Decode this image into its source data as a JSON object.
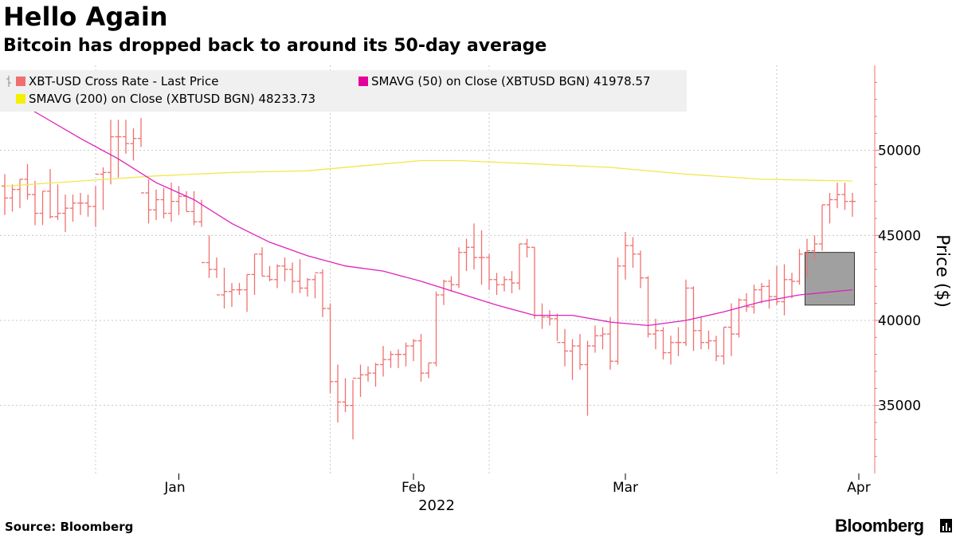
{
  "header": {
    "title": "Hello Again",
    "subtitle": "Bitcoin has dropped back to around its 50-day average"
  },
  "footer": {
    "source": "Source: Bloomberg",
    "brand": "Bloomberg"
  },
  "legend": {
    "items": [
      {
        "label": "XBT-USD Cross Rate - Last Price",
        "color": "#f07070"
      },
      {
        "label": "SMAVG (50)  on Close (XBTUSD BGN) 41978.57",
        "color": "#e6009a"
      },
      {
        "label": "SMAVG (200)  on Close (XBTUSD BGN) 48233.73",
        "color": "#f5f000"
      }
    ]
  },
  "colors": {
    "price": "#f07070",
    "sma50": "#dd22bb",
    "sma200": "#f0e84a",
    "grid": "#c8c8c8",
    "axis": "#f07070",
    "highlight_fill": "#a0a0a0"
  },
  "chart_data": {
    "type": "line",
    "title": "Hello Again",
    "subtitle": "Bitcoin has dropped back to around its 50-day average",
    "xlabel": "2022",
    "ylabel": "Price ($)",
    "ylim": [
      31000,
      55000
    ],
    "y_ticks": [
      35000,
      40000,
      45000,
      50000
    ],
    "y_tick_labels": [
      "35000",
      "40000",
      "45000",
      "50000"
    ],
    "x_tick_labels": [
      "Jan",
      "Feb",
      "Mar",
      "Apr"
    ],
    "x_range": [
      "2021-12-09",
      "2022-03-31"
    ],
    "x_ticks": [
      "2022-01-01",
      "2022-02-01",
      "2022-03-01",
      "2022-04-01"
    ],
    "x_grid": [
      "2021-12-21",
      "2022-01-21",
      "2022-02-11",
      "2022-03-21"
    ],
    "grid": true,
    "legend_position": "top-left",
    "highlight": {
      "from": "2022-03-26",
      "to": "2022-03-30",
      "ylow": 40900,
      "yhigh": 44000
    },
    "series": [
      {
        "name": "XBT-USD Cross Rate - Last Price",
        "style": "ohlc",
        "x": [
          "2021-12-09",
          "2021-12-10",
          "2021-12-11",
          "2021-12-12",
          "2021-12-13",
          "2021-12-14",
          "2021-12-15",
          "2021-12-16",
          "2021-12-17",
          "2021-12-18",
          "2021-12-19",
          "2021-12-20",
          "2021-12-21",
          "2021-12-22",
          "2021-12-23",
          "2021-12-24",
          "2021-12-25",
          "2021-12-26",
          "2021-12-27",
          "2021-12-28",
          "2021-12-29",
          "2021-12-30",
          "2021-12-31",
          "2022-01-01",
          "2022-01-02",
          "2022-01-03",
          "2022-01-04",
          "2022-01-05",
          "2022-01-06",
          "2022-01-07",
          "2022-01-08",
          "2022-01-09",
          "2022-01-10",
          "2022-01-11",
          "2022-01-12",
          "2022-01-13",
          "2022-01-14",
          "2022-01-15",
          "2022-01-16",
          "2022-01-17",
          "2022-01-18",
          "2022-01-19",
          "2022-01-20",
          "2022-01-21",
          "2022-01-22",
          "2022-01-23",
          "2022-01-24",
          "2022-01-25",
          "2022-01-26",
          "2022-01-27",
          "2022-01-28",
          "2022-01-29",
          "2022-01-30",
          "2022-01-31",
          "2022-02-01",
          "2022-02-02",
          "2022-02-03",
          "2022-02-04",
          "2022-02-05",
          "2022-02-06",
          "2022-02-07",
          "2022-02-08",
          "2022-02-09",
          "2022-02-10",
          "2022-02-11",
          "2022-02-12",
          "2022-02-13",
          "2022-02-14",
          "2022-02-15",
          "2022-02-16",
          "2022-02-17",
          "2022-02-18",
          "2022-02-19",
          "2022-02-20",
          "2022-02-21",
          "2022-02-22",
          "2022-02-23",
          "2022-02-24",
          "2022-02-25",
          "2022-02-26",
          "2022-02-27",
          "2022-02-28",
          "2022-03-01",
          "2022-03-02",
          "2022-03-03",
          "2022-03-04",
          "2022-03-05",
          "2022-03-06",
          "2022-03-07",
          "2022-03-08",
          "2022-03-09",
          "2022-03-10",
          "2022-03-11",
          "2022-03-12",
          "2022-03-13",
          "2022-03-14",
          "2022-03-15",
          "2022-03-16",
          "2022-03-17",
          "2022-03-18",
          "2022-03-19",
          "2022-03-20",
          "2022-03-21",
          "2022-03-22",
          "2022-03-23",
          "2022-03-24",
          "2022-03-25",
          "2022-03-26",
          "2022-03-27",
          "2022-03-28",
          "2022-03-29",
          "2022-03-30",
          "2022-03-31"
        ],
        "open": [
          47900,
          47200,
          47700,
          48300,
          47400,
          46300,
          47600,
          46100,
          46300,
          46600,
          46900,
          46900,
          46700,
          48600,
          48700,
          50800,
          50800,
          50400,
          50700,
          47500,
          46500,
          47100,
          46300,
          47000,
          47300,
          46400,
          45800,
          43400,
          43000,
          41500,
          41700,
          41800,
          41800,
          42700,
          43900,
          42600,
          42400,
          43200,
          43000,
          42300,
          41900,
          42400,
          42800,
          40700,
          36400,
          35200,
          35000,
          36600,
          36800,
          36900,
          37400,
          37700,
          38000,
          38000,
          38500,
          38800,
          36900,
          37500,
          41500,
          42300,
          42100,
          44000,
          44300,
          43700,
          43700,
          42400,
          42100,
          42400,
          42200,
          44500,
          44300,
          40300,
          40200,
          40100,
          38700,
          38200,
          38500,
          37400,
          38500,
          39100,
          39200,
          37600,
          43200,
          44400,
          43900,
          42500,
          39200,
          39400,
          38100,
          38700,
          38700,
          41900,
          39400,
          38700,
          38800,
          37900,
          39600,
          39200,
          41200,
          40800,
          41800,
          42000,
          41400,
          41100,
          42400,
          42300,
          43900,
          44100,
          44500,
          46800,
          47100,
          47400,
          47000
        ],
        "high": [
          48600,
          48000,
          48300,
          49200,
          48200,
          47600,
          48900,
          48000,
          47400,
          47400,
          47500,
          47400,
          47900,
          49000,
          51800,
          51800,
          51800,
          51300,
          51900,
          48300,
          47700,
          47800,
          48100,
          47900,
          47600,
          47600,
          47100,
          45000,
          43700,
          43100,
          42200,
          42200,
          42700,
          43900,
          44300,
          43200,
          43300,
          43700,
          43400,
          43600,
          42500,
          42700,
          43000,
          41000,
          37400,
          36600,
          36500,
          37400,
          37300,
          37500,
          38500,
          38200,
          38300,
          38700,
          38900,
          39200,
          37500,
          41700,
          42400,
          42600,
          44300,
          44800,
          45700,
          45300,
          43900,
          42800,
          42600,
          42900,
          44500,
          44800,
          44300,
          41000,
          40600,
          40400,
          39500,
          38900,
          39200,
          38800,
          39700,
          39600,
          40200,
          43700,
          45200,
          44900,
          44100,
          42600,
          40100,
          39600,
          39100,
          39600,
          42400,
          42000,
          40200,
          39400,
          39100,
          39600,
          41000,
          41300,
          41600,
          42100,
          42200,
          42400,
          43200,
          43300,
          42800,
          44200,
          44800,
          45000,
          46800,
          47500,
          48100,
          48100,
          47500
        ],
        "low": [
          46200,
          46400,
          46600,
          47100,
          45600,
          45600,
          46000,
          45900,
          45200,
          45800,
          46200,
          46100,
          45500,
          46500,
          48000,
          48400,
          49800,
          49400,
          50200,
          45700,
          45900,
          46000,
          45800,
          46200,
          46400,
          45600,
          45500,
          42500,
          42500,
          40700,
          40800,
          41500,
          40500,
          41500,
          42600,
          42300,
          41900,
          42300,
          41600,
          41600,
          41400,
          41300,
          40200,
          35700,
          34000,
          34600,
          33000,
          35500,
          36400,
          36100,
          36700,
          37200,
          37200,
          37300,
          37600,
          36400,
          36600,
          37300,
          40900,
          41700,
          41900,
          42900,
          43000,
          42100,
          41800,
          41500,
          41700,
          41600,
          41800,
          43700,
          40100,
          39500,
          39700,
          38800,
          37300,
          36500,
          37100,
          34400,
          38100,
          38300,
          37100,
          37400,
          42400,
          43100,
          41900,
          39000,
          38300,
          37700,
          37400,
          37900,
          38500,
          38200,
          38300,
          38300,
          37600,
          37400,
          37900,
          39000,
          40500,
          40400,
          41000,
          40700,
          40900,
          40300,
          41300,
          42100,
          42500,
          43600,
          44100,
          45700,
          46600,
          46500,
          46100
        ]
      },
      {
        "name": "SMAVG (50)  on Close (XBTUSD BGN) 41978.57",
        "x": [
          "2021-12-09",
          "2021-12-14",
          "2021-12-19",
          "2021-12-24",
          "2021-12-29",
          "2022-01-03",
          "2022-01-08",
          "2022-01-13",
          "2022-01-18",
          "2022-01-23",
          "2022-01-28",
          "2022-02-02",
          "2022-02-07",
          "2022-02-12",
          "2022-02-17",
          "2022-02-22",
          "2022-02-27",
          "2022-03-04",
          "2022-03-09",
          "2022-03-14",
          "2022-03-19",
          "2022-03-24",
          "2022-03-31"
        ],
        "values": [
          53300,
          52000,
          50700,
          49500,
          48100,
          47100,
          45700,
          44600,
          43800,
          43200,
          42900,
          42300,
          41600,
          40900,
          40300,
          40300,
          39900,
          39700,
          40000,
          40500,
          41100,
          41500,
          41800
        ]
      },
      {
        "name": "SMAVG (200)  on Close (XBTUSD BGN) 48233.73",
        "x": [
          "2021-12-09",
          "2021-12-19",
          "2021-12-29",
          "2022-01-08",
          "2022-01-18",
          "2022-01-28",
          "2022-02-02",
          "2022-02-07",
          "2022-02-17",
          "2022-02-27",
          "2022-03-09",
          "2022-03-19",
          "2022-03-31"
        ],
        "values": [
          47900,
          48200,
          48500,
          48700,
          48800,
          49200,
          49400,
          49400,
          49200,
          49000,
          48600,
          48300,
          48200
        ]
      }
    ]
  }
}
